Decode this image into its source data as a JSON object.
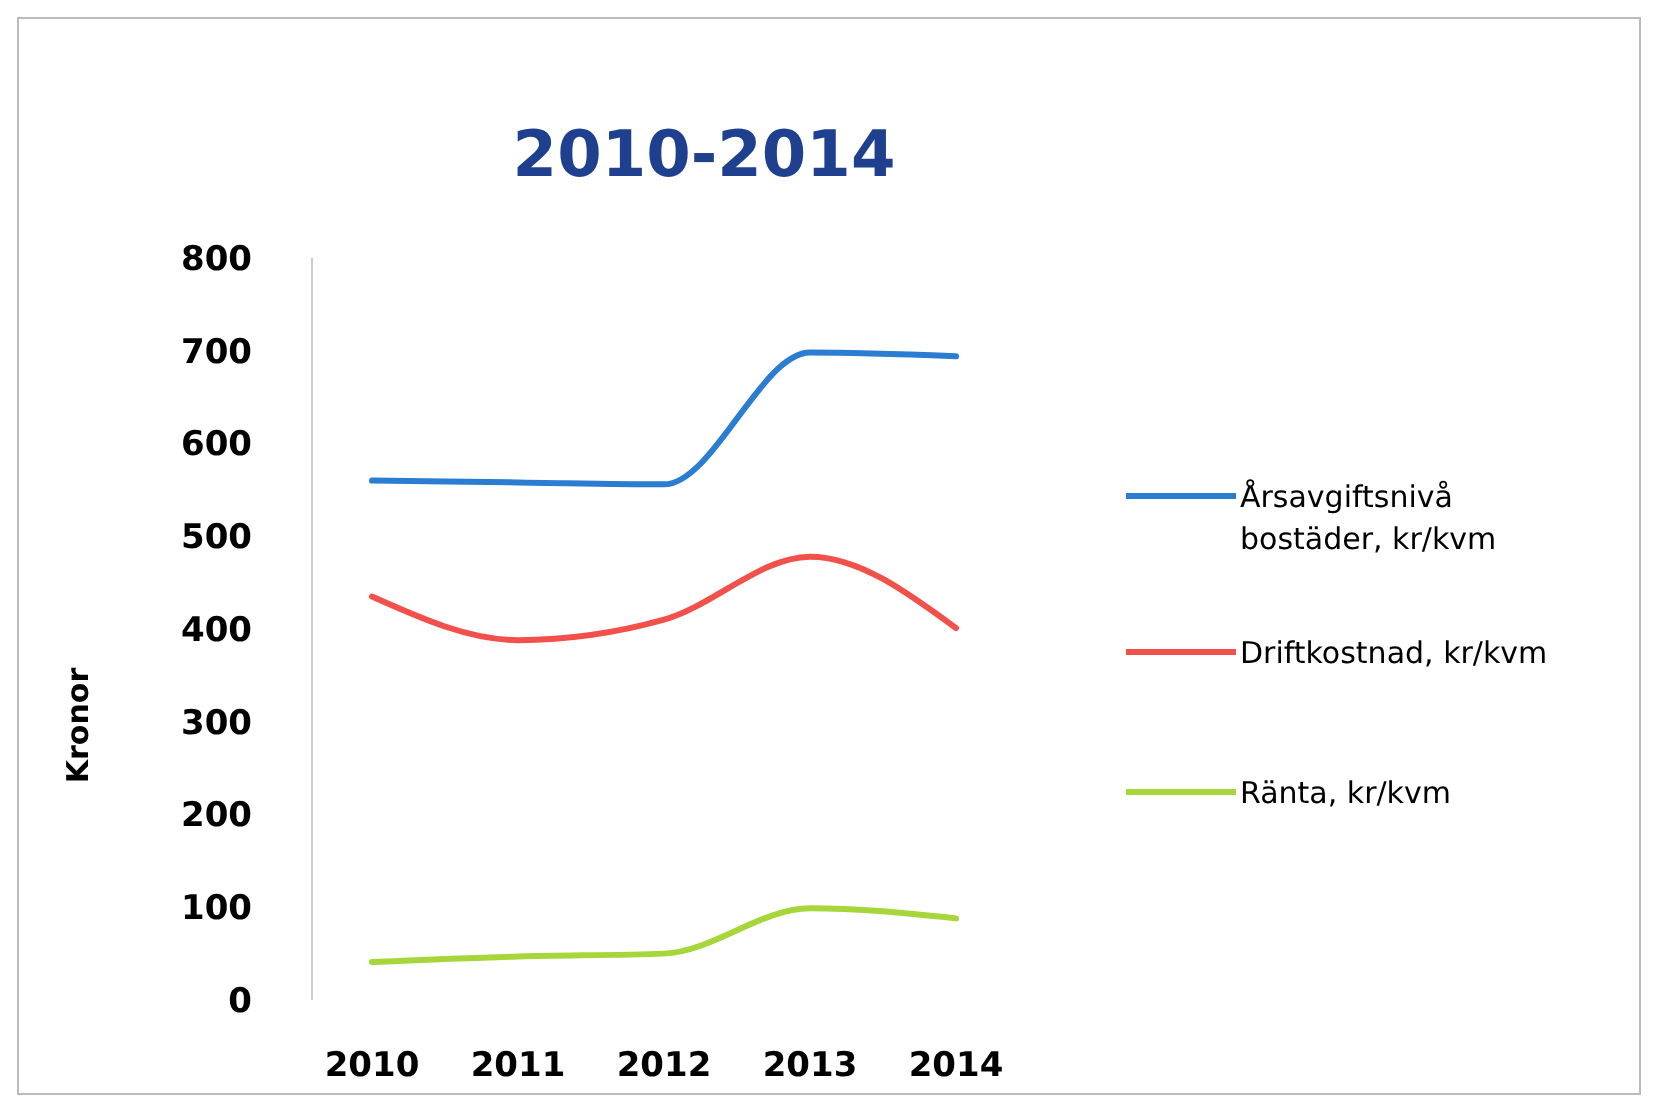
{
  "chart_data": {
    "type": "line",
    "title": "2010-2014",
    "ylabel": "Kronor",
    "categories": [
      "2010",
      "2011",
      "2012",
      "2013",
      "2014"
    ],
    "series": [
      {
        "name": "Årsavgiftsnivå bostäder, kr/kvm",
        "color": "#2a7dd1",
        "values": [
          560,
          558,
          556,
          698,
          694
        ]
      },
      {
        "name": "Driftkostnad, kr/kvm",
        "color": "#f2504a",
        "values": [
          435,
          388,
          410,
          478,
          401
        ]
      },
      {
        "name": "Ränta, kr/kvm",
        "color": "#a6d63a",
        "values": [
          41,
          47,
          50,
          99,
          88
        ]
      }
    ],
    "ylim": [
      0,
      800
    ],
    "yticks": [
      0,
      100,
      200,
      300,
      400,
      500,
      600,
      700,
      800
    ],
    "grid": false,
    "legend": "right",
    "marker": "none",
    "line_style": "solid"
  }
}
